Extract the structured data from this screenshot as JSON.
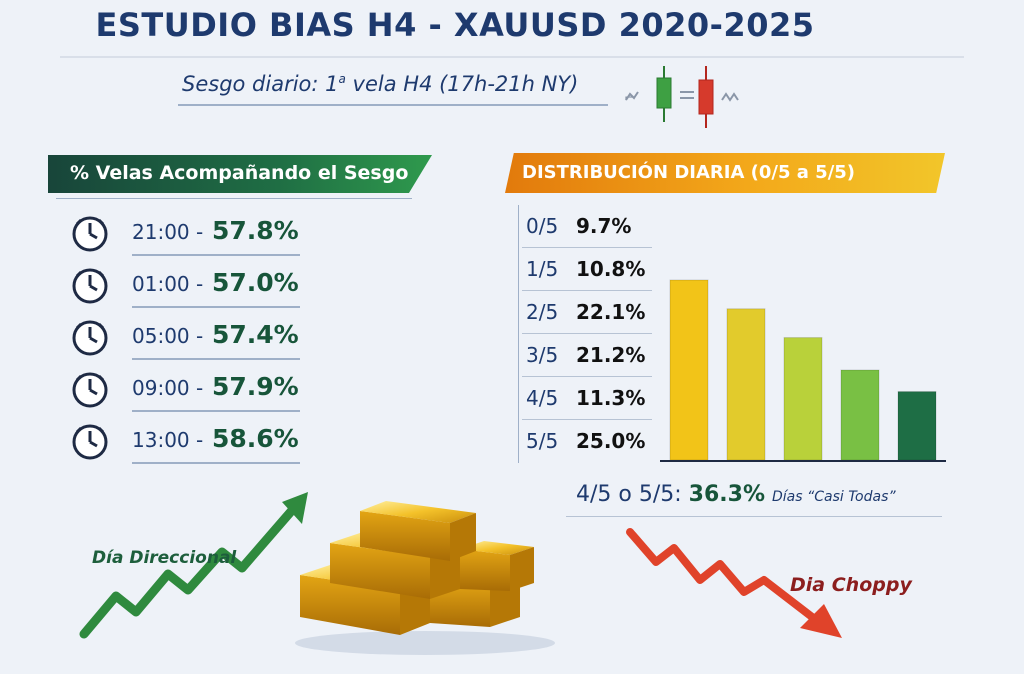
{
  "header": {
    "title": "ESTUDIO BIAS H4 - XAUUSD 2020-2025",
    "subtitle_pre": "Sesgo diario: 1",
    "subtitle_sup": "a",
    "subtitle_post": " vela H4 (17h-21h NY)"
  },
  "left_panel": {
    "title": "% Velas Acompañando el Sesgo",
    "rows": [
      {
        "time": "21:00 -",
        "pct": "57.8%"
      },
      {
        "time": "01:00 -",
        "pct": "57.0%"
      },
      {
        "time": "05:00 -",
        "pct": "57.4%"
      },
      {
        "time": "09:00 -",
        "pct": "57.9%"
      },
      {
        "time": "13:00 -",
        "pct": "58.6%"
      }
    ]
  },
  "right_panel": {
    "title": "DISTRIBUCIÓN DIARIA (0/5 a 5/5)",
    "rows": [
      {
        "cat": "0/5",
        "val": "9.7%"
      },
      {
        "cat": "1/5",
        "val": "10.8%"
      },
      {
        "cat": "2/5",
        "val": "22.1%"
      },
      {
        "cat": "3/5",
        "val": "21.2%"
      },
      {
        "cat": "4/5",
        "val": "11.3%"
      },
      {
        "cat": "5/5",
        "val": "25.0%"
      }
    ],
    "summary_label": "4/5 o 5/5:",
    "summary_pct": "36.3%",
    "summary_note": "Días “Casi Todas”"
  },
  "chart_data": {
    "type": "bar",
    "title": "",
    "categories": [
      "",
      "",
      "",
      "",
      ""
    ],
    "values": [
      100,
      84,
      68,
      50,
      38
    ],
    "colors": [
      "#f2c418",
      "#e2cb2c",
      "#b9d13a",
      "#79c044",
      "#1e6e45"
    ],
    "xlabel": "",
    "ylabel": "",
    "ylim": [
      0,
      100
    ],
    "grid": false
  },
  "decor": {
    "direccional_label": "Día Direccional",
    "choppy_label": "Dia Choppy",
    "green_color": "#2f8a3e",
    "red_color": "#e0432a"
  }
}
